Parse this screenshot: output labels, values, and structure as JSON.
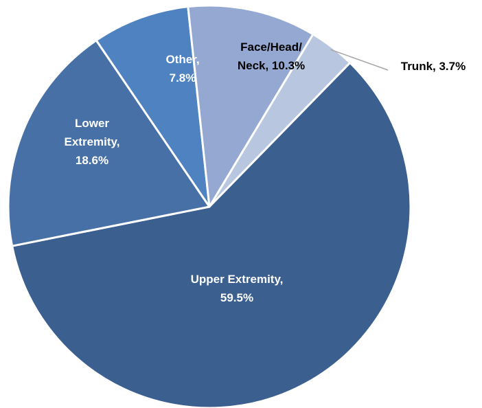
{
  "chart_data": {
    "type": "pie",
    "title": "",
    "slices": [
      {
        "name": "Trunk",
        "value": 3.7,
        "lines": [
          "Trunk, 3.7%"
        ],
        "color": "#b9c6e0",
        "label_color": "#000000"
      },
      {
        "name": "Upper Extremity",
        "value": 59.5,
        "lines": [
          "Upper Extremity,",
          "59.5%"
        ],
        "color": "#3b5f8f",
        "label_color": "#ffffff"
      },
      {
        "name": "Lower Extremity",
        "value": 18.6,
        "lines": [
          "Lower",
          "Extremity,",
          "18.6%"
        ],
        "color": "#4771a6",
        "label_color": "#ffffff"
      },
      {
        "name": "Other",
        "value": 7.8,
        "lines": [
          "Other,",
          "7.8%"
        ],
        "color": "#4f82c0",
        "label_color": "#ffffff"
      },
      {
        "name": "Face/Head/Neck",
        "value": 10.3,
        "lines": [
          "Face/Head/",
          "Neck, 10.3%"
        ],
        "color": "#94a8d1",
        "label_color": "#000000"
      }
    ]
  }
}
